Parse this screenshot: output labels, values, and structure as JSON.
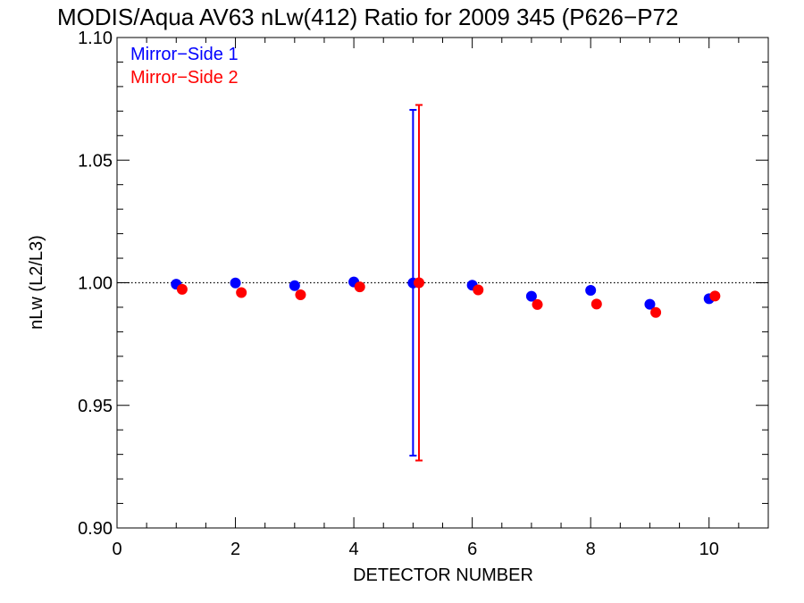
{
  "chart_data": {
    "type": "scatter",
    "title": "MODIS/Aqua AV63 nLw(412) Ratio for 2009 345 (P626−P72",
    "xlabel": "DETECTOR NUMBER",
    "ylabel": "nLw (L2/L3)",
    "xlim": [
      0,
      11
    ],
    "ylim": [
      0.9,
      1.1
    ],
    "x_ticks": [
      0,
      2,
      4,
      6,
      8,
      10
    ],
    "x_tick_labels": [
      "0",
      "2",
      "4",
      "6",
      "8",
      "10"
    ],
    "x_minor_step": 0.5,
    "y_ticks": [
      0.9,
      0.95,
      1.0,
      1.05,
      1.1
    ],
    "y_tick_labels": [
      "0.90",
      "0.95",
      "1.00",
      "1.05",
      "1.10"
    ],
    "y_minor_step": 0.01,
    "reference_line": 1.0,
    "legend_position": "top-left",
    "series": [
      {
        "name": "Mirror−Side 1",
        "color": "#0000ff",
        "x": [
          1,
          2,
          3,
          4,
          5,
          6,
          7,
          8,
          9,
          10
        ],
        "y": [
          0.9994,
          0.9999,
          0.9988,
          1.0003,
          0.9999,
          0.999,
          0.9945,
          0.9969,
          0.9912,
          0.9935
        ],
        "error_bar": {
          "x": 5,
          "low": 0.9295,
          "high": 1.0705
        }
      },
      {
        "name": "Mirror−Side 2",
        "color": "#ff0000",
        "x": [
          1.1,
          2.1,
          3.1,
          4.1,
          5.1,
          6.1,
          7.1,
          8.1,
          9.1,
          10.1
        ],
        "y": [
          0.9973,
          0.996,
          0.9951,
          0.9983,
          1.0,
          0.9971,
          0.9911,
          0.9913,
          0.9879,
          0.9946
        ],
        "error_bar": {
          "x": 5.1,
          "low": 0.9275,
          "high": 1.0725
        }
      }
    ]
  }
}
